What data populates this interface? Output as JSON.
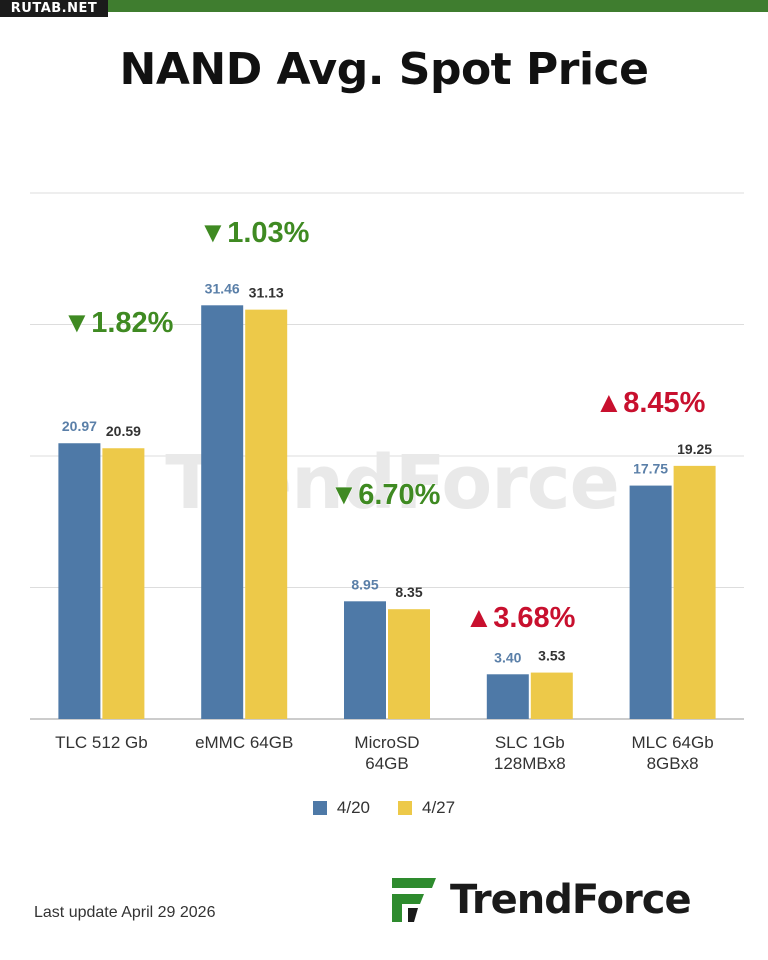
{
  "site_badge": "RUTAB.NET",
  "title": "NAND Avg. Spot Price",
  "footnote": "Last update  April 29  2026",
  "brand": {
    "name": "TrendForce",
    "watermark": "TrendForce",
    "logo_icon": "trendforce-logo-icon"
  },
  "colors": {
    "series_1": "#4e79a7",
    "series_2": "#edc949",
    "down": "#3f8a22",
    "up": "#c8102e",
    "grid": "#dddddd"
  },
  "chart_data": {
    "type": "bar",
    "title": "NAND Avg. Spot Price",
    "categories": [
      [
        "TLC 512 Gb"
      ],
      [
        "eMMC 64GB"
      ],
      [
        "MicroSD",
        "64GB"
      ],
      [
        "SLC 1Gb",
        "128MBx8"
      ],
      [
        "MLC 64Gb",
        "8GBx8"
      ]
    ],
    "series": [
      {
        "name": "4/20",
        "values": [
          20.97,
          31.46,
          8.95,
          3.4,
          17.75
        ],
        "labels": [
          "20.97",
          "31.46",
          "8.95",
          "3.40",
          "17.75"
        ]
      },
      {
        "name": "4/27",
        "values": [
          20.59,
          31.13,
          8.35,
          3.53,
          19.25
        ],
        "labels": [
          "20.59",
          "31.13",
          "8.35",
          "3.53",
          "19.25"
        ]
      }
    ],
    "changes": [
      {
        "text": "1.82%",
        "direction": "down"
      },
      {
        "text": "1.03%",
        "direction": "down"
      },
      {
        "text": "6.70%",
        "direction": "down"
      },
      {
        "text": "3.68%",
        "direction": "up"
      },
      {
        "text": "8.45%",
        "direction": "up"
      }
    ],
    "ylim": [
      0,
      40
    ],
    "grid": true,
    "legend_position": "bottom"
  }
}
